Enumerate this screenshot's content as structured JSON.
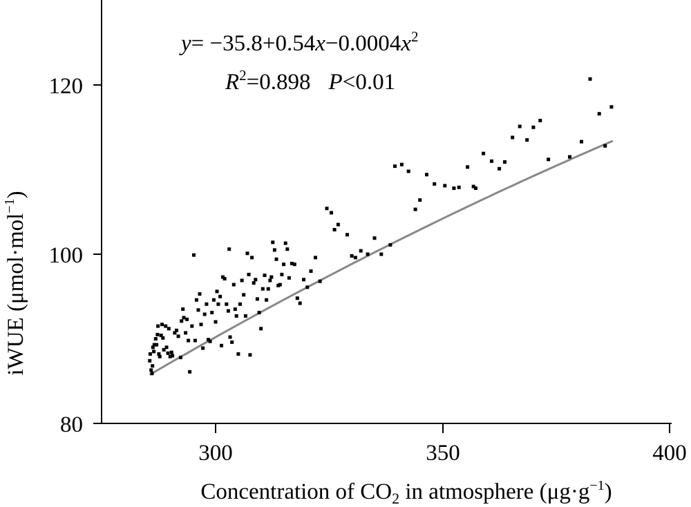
{
  "chart_data": {
    "type": "scatter",
    "title": "",
    "xlabel": {
      "main": "Concentration of CO",
      "sub": "2",
      "rest": " in atmosphere (μg·g",
      "sup": "−1",
      "close": ")"
    },
    "ylabel": {
      "main": "iWUE (μmol·mol",
      "sup": "−1",
      "close": ")"
    },
    "xlim": [
      275,
      400
    ],
    "ylim": [
      80,
      130
    ],
    "xticks": [
      "300",
      "350",
      "400"
    ],
    "yticks": [
      "80",
      "100",
      "120"
    ],
    "grid": false,
    "legend": "none",
    "annotations": {
      "equation": {
        "y": "y",
        "p1": "= −35.8+0.54",
        "x1": "x",
        "p2": "−0.0004",
        "x2": "x",
        "exp": "2"
      },
      "r2": {
        "R": "R",
        "exp": "2",
        "val": "=0.898",
        "P": "P",
        "pval": "<0.01"
      }
    },
    "trendline": {
      "type": "quadratic",
      "coefficients": [
        -35.8,
        0.54,
        -0.0004
      ],
      "x_range": [
        285.5,
        387.5
      ],
      "color": "#888888"
    },
    "marker_color": "#000000",
    "points": [
      {
        "x": 285.5,
        "y": 87.4
      },
      {
        "x": 285.6,
        "y": 88.2
      },
      {
        "x": 285.8,
        "y": 86.3
      },
      {
        "x": 286.0,
        "y": 85.9
      },
      {
        "x": 286.1,
        "y": 86.8
      },
      {
        "x": 286.2,
        "y": 89.0
      },
      {
        "x": 286.4,
        "y": 88.5
      },
      {
        "x": 286.5,
        "y": 89.3
      },
      {
        "x": 286.8,
        "y": 90.0
      },
      {
        "x": 287.0,
        "y": 89.3
      },
      {
        "x": 287.2,
        "y": 90.5
      },
      {
        "x": 287.3,
        "y": 91.5
      },
      {
        "x": 287.5,
        "y": 88.2
      },
      {
        "x": 287.7,
        "y": 87.9
      },
      {
        "x": 288.0,
        "y": 90.4
      },
      {
        "x": 288.2,
        "y": 91.7
      },
      {
        "x": 288.4,
        "y": 90.1
      },
      {
        "x": 288.6,
        "y": 88.7
      },
      {
        "x": 289.0,
        "y": 91.5
      },
      {
        "x": 289.2,
        "y": 89.0
      },
      {
        "x": 289.5,
        "y": 88.3
      },
      {
        "x": 289.7,
        "y": 91.2
      },
      {
        "x": 290.0,
        "y": 87.9
      },
      {
        "x": 290.3,
        "y": 88.4
      },
      {
        "x": 290.5,
        "y": 88.0
      },
      {
        "x": 291.0,
        "y": 90.7
      },
      {
        "x": 291.4,
        "y": 91.0
      },
      {
        "x": 291.8,
        "y": 90.3
      },
      {
        "x": 292.3,
        "y": 87.8
      },
      {
        "x": 292.5,
        "y": 92.1
      },
      {
        "x": 292.8,
        "y": 93.5
      },
      {
        "x": 293.0,
        "y": 92.5
      },
      {
        "x": 293.4,
        "y": 90.7
      },
      {
        "x": 293.7,
        "y": 92.3
      },
      {
        "x": 294.0,
        "y": 89.8
      },
      {
        "x": 294.3,
        "y": 86.1
      },
      {
        "x": 294.8,
        "y": 91.5
      },
      {
        "x": 295.2,
        "y": 99.9
      },
      {
        "x": 295.5,
        "y": 89.8
      },
      {
        "x": 295.8,
        "y": 94.6
      },
      {
        "x": 296.2,
        "y": 93.4
      },
      {
        "x": 296.5,
        "y": 95.3
      },
      {
        "x": 296.8,
        "y": 91.7
      },
      {
        "x": 297.2,
        "y": 88.9
      },
      {
        "x": 297.6,
        "y": 92.9
      },
      {
        "x": 298.0,
        "y": 94.1
      },
      {
        "x": 298.4,
        "y": 89.9
      },
      {
        "x": 298.8,
        "y": 89.7
      },
      {
        "x": 299.2,
        "y": 93.1
      },
      {
        "x": 299.6,
        "y": 94.6
      },
      {
        "x": 300.0,
        "y": 92.0
      },
      {
        "x": 300.3,
        "y": 95.6
      },
      {
        "x": 300.6,
        "y": 94.1
      },
      {
        "x": 301.0,
        "y": 95.0
      },
      {
        "x": 301.3,
        "y": 89.2
      },
      {
        "x": 301.6,
        "y": 97.3
      },
      {
        "x": 302.0,
        "y": 97.1
      },
      {
        "x": 302.4,
        "y": 94.1
      },
      {
        "x": 302.8,
        "y": 93.3
      },
      {
        "x": 303.0,
        "y": 100.6
      },
      {
        "x": 303.2,
        "y": 90.2
      },
      {
        "x": 303.6,
        "y": 89.6
      },
      {
        "x": 304.0,
        "y": 96.4
      },
      {
        "x": 304.3,
        "y": 93.5
      },
      {
        "x": 304.6,
        "y": 92.7
      },
      {
        "x": 305.0,
        "y": 88.2
      },
      {
        "x": 305.4,
        "y": 94.1
      },
      {
        "x": 305.8,
        "y": 96.9
      },
      {
        "x": 306.2,
        "y": 95.2
      },
      {
        "x": 306.6,
        "y": 92.7
      },
      {
        "x": 307.0,
        "y": 100.1
      },
      {
        "x": 307.3,
        "y": 97.6
      },
      {
        "x": 307.6,
        "y": 88.1
      },
      {
        "x": 308.0,
        "y": 99.6
      },
      {
        "x": 308.4,
        "y": 96.6
      },
      {
        "x": 308.8,
        "y": 97.0
      },
      {
        "x": 309.2,
        "y": 94.7
      },
      {
        "x": 309.6,
        "y": 93.1
      },
      {
        "x": 310.0,
        "y": 91.2
      },
      {
        "x": 310.4,
        "y": 95.9
      },
      {
        "x": 310.8,
        "y": 97.5
      },
      {
        "x": 311.2,
        "y": 94.6
      },
      {
        "x": 311.6,
        "y": 95.9
      },
      {
        "x": 312.0,
        "y": 96.9
      },
      {
        "x": 312.3,
        "y": 97.3
      },
      {
        "x": 312.6,
        "y": 101.4
      },
      {
        "x": 313.0,
        "y": 100.5
      },
      {
        "x": 313.4,
        "y": 99.4
      },
      {
        "x": 313.8,
        "y": 96.3
      },
      {
        "x": 314.2,
        "y": 96.4
      },
      {
        "x": 314.6,
        "y": 97.6
      },
      {
        "x": 315.0,
        "y": 98.8
      },
      {
        "x": 315.4,
        "y": 101.3
      },
      {
        "x": 315.8,
        "y": 100.6
      },
      {
        "x": 316.2,
        "y": 97.2
      },
      {
        "x": 316.8,
        "y": 98.9
      },
      {
        "x": 317.4,
        "y": 98.8
      },
      {
        "x": 318.0,
        "y": 94.8
      },
      {
        "x": 318.6,
        "y": 94.2
      },
      {
        "x": 319.4,
        "y": 97.0
      },
      {
        "x": 320.2,
        "y": 96.1
      },
      {
        "x": 321.0,
        "y": 98.0
      },
      {
        "x": 322.0,
        "y": 99.6
      },
      {
        "x": 323.0,
        "y": 96.8
      },
      {
        "x": 324.5,
        "y": 105.4
      },
      {
        "x": 325.5,
        "y": 104.9
      },
      {
        "x": 326.2,
        "y": 102.9
      },
      {
        "x": 327.0,
        "y": 103.5
      },
      {
        "x": 329.0,
        "y": 102.3
      },
      {
        "x": 330.0,
        "y": 99.8
      },
      {
        "x": 330.8,
        "y": 99.6
      },
      {
        "x": 332.0,
        "y": 100.4
      },
      {
        "x": 333.5,
        "y": 100.0
      },
      {
        "x": 335.0,
        "y": 101.9
      },
      {
        "x": 336.5,
        "y": 100.0
      },
      {
        "x": 338.5,
        "y": 101.1
      },
      {
        "x": 339.5,
        "y": 110.4
      },
      {
        "x": 341.0,
        "y": 110.6
      },
      {
        "x": 342.5,
        "y": 109.8
      },
      {
        "x": 344.0,
        "y": 105.3
      },
      {
        "x": 345.0,
        "y": 106.4
      },
      {
        "x": 346.5,
        "y": 109.4
      },
      {
        "x": 348.2,
        "y": 108.3
      },
      {
        "x": 350.5,
        "y": 108.1
      },
      {
        "x": 352.5,
        "y": 107.8
      },
      {
        "x": 353.6,
        "y": 107.9
      },
      {
        "x": 355.5,
        "y": 110.3
      },
      {
        "x": 356.8,
        "y": 108.0
      },
      {
        "x": 357.3,
        "y": 107.8
      },
      {
        "x": 359.0,
        "y": 111.9
      },
      {
        "x": 360.8,
        "y": 111.0
      },
      {
        "x": 362.5,
        "y": 110.1
      },
      {
        "x": 363.7,
        "y": 110.9
      },
      {
        "x": 365.4,
        "y": 113.8
      },
      {
        "x": 367.0,
        "y": 115.1
      },
      {
        "x": 368.6,
        "y": 113.5
      },
      {
        "x": 370.0,
        "y": 115.0
      },
      {
        "x": 371.5,
        "y": 115.8
      },
      {
        "x": 373.3,
        "y": 111.2
      },
      {
        "x": 378.0,
        "y": 111.5
      },
      {
        "x": 380.6,
        "y": 113.3
      },
      {
        "x": 382.5,
        "y": 120.7
      },
      {
        "x": 384.5,
        "y": 116.6
      },
      {
        "x": 385.8,
        "y": 112.8
      },
      {
        "x": 387.2,
        "y": 117.4
      }
    ]
  }
}
